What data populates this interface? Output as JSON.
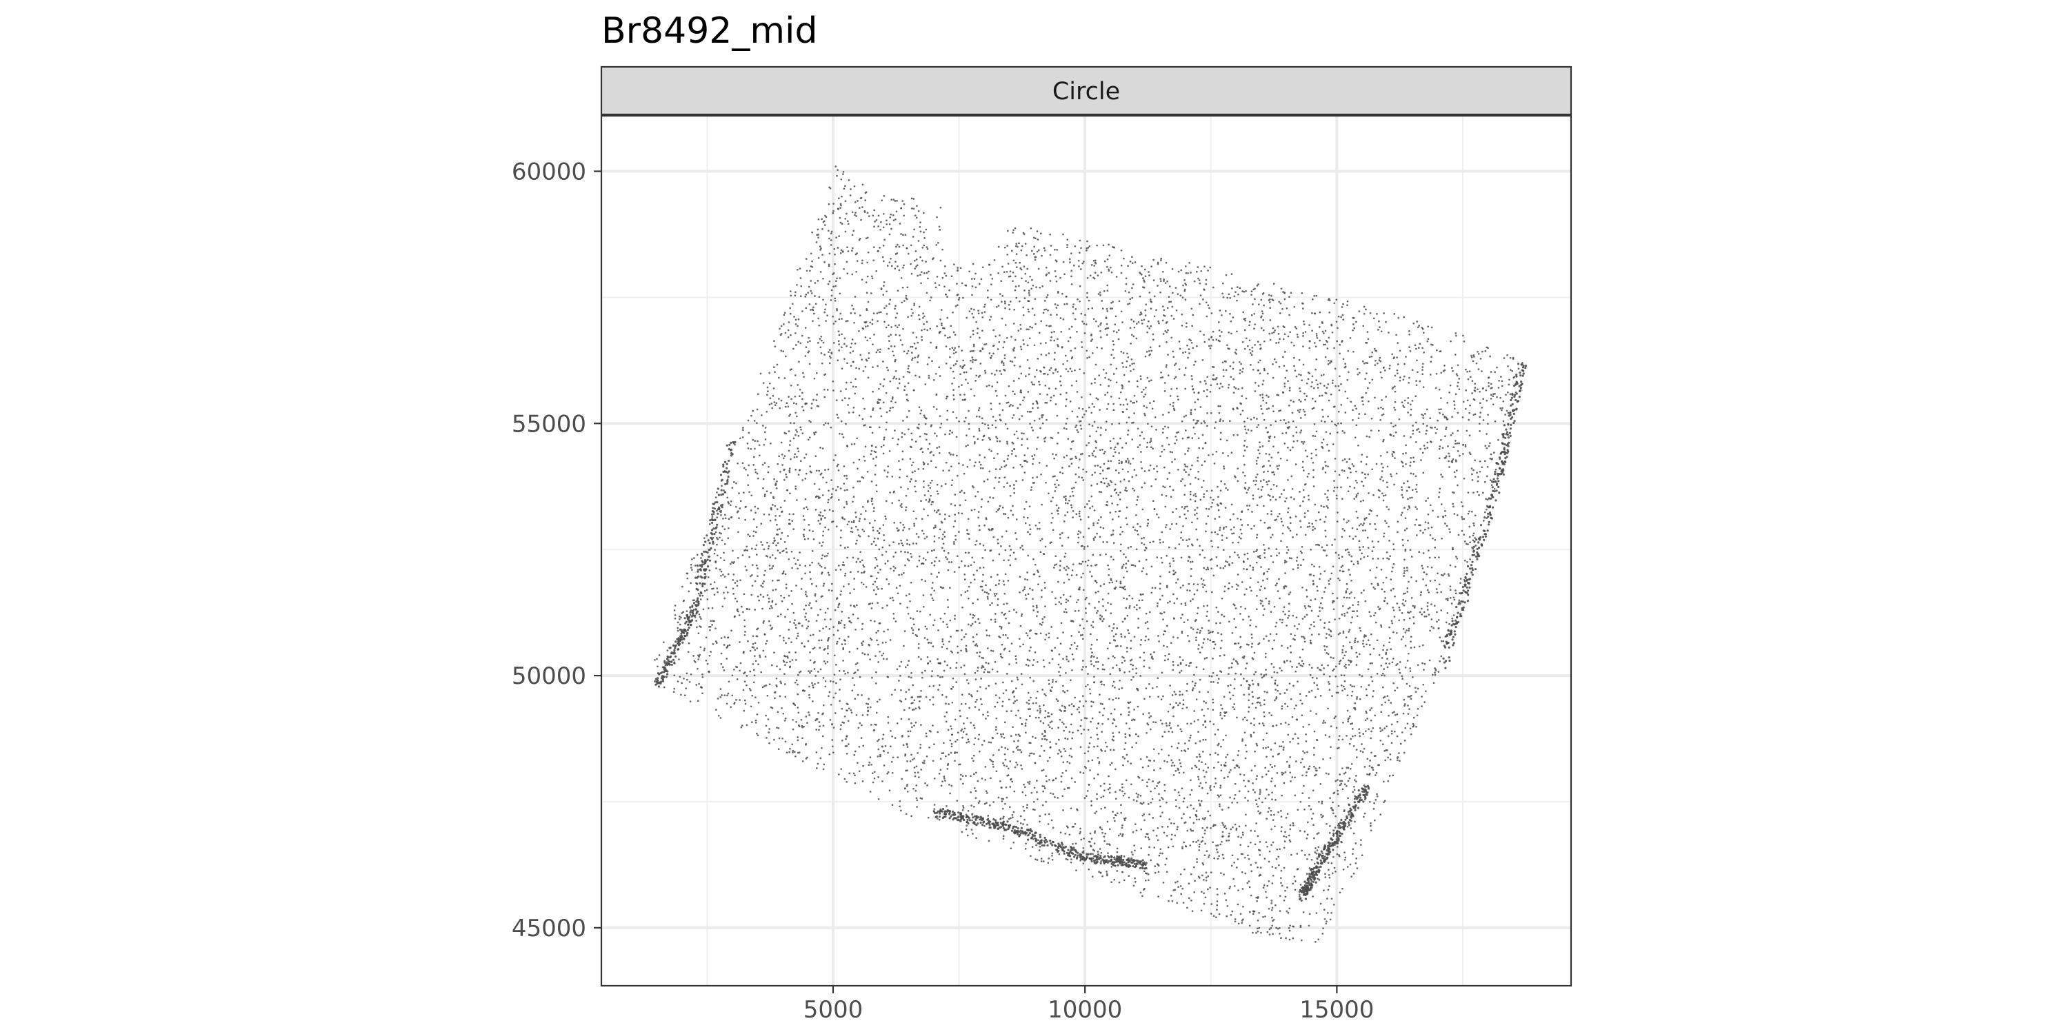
{
  "chart_data": {
    "type": "scatter",
    "title": "Br8492_mid",
    "facet_label": "Circle",
    "xlabel": "",
    "ylabel": "",
    "xlim": [
      400,
      19650
    ],
    "ylim": [
      43850,
      61100
    ],
    "x_ticks": [
      5000,
      10000,
      15000
    ],
    "x_tick_labels": [
      "5000",
      "10000",
      "15000"
    ],
    "y_ticks": [
      45000,
      50000,
      55000,
      60000
    ],
    "y_tick_labels": [
      "45000",
      "50000",
      "55000",
      "60000"
    ],
    "grid": true,
    "point_color": "#4d4d4d",
    "point_count_drawn": 9000,
    "region_outline": [
      [
        5050,
        60100
      ],
      [
        5850,
        59700
      ],
      [
        7200,
        59300
      ],
      [
        12100,
        58200
      ],
      [
        16900,
        57000
      ],
      [
        18700,
        56250
      ],
      [
        18100,
        53500
      ],
      [
        17000,
        50000
      ],
      [
        15800,
        47000
      ],
      [
        14700,
        44700
      ],
      [
        13500,
        44800
      ],
      [
        6300,
        47300
      ],
      [
        1300,
        49900
      ],
      [
        3200,
        55000
      ],
      [
        4200,
        57800
      ]
    ],
    "dense_streaks": [
      {
        "name": "lower-left-streak",
        "points": [
          [
            7000,
            47300
          ],
          [
            8500,
            47000
          ],
          [
            10000,
            46400
          ],
          [
            11200,
            46250
          ]
        ]
      },
      {
        "name": "lower-right-streak",
        "points": [
          [
            14300,
            45600
          ],
          [
            14800,
            46500
          ],
          [
            15600,
            47800
          ]
        ]
      },
      {
        "name": "right-edge-streak",
        "points": [
          [
            18700,
            56200
          ],
          [
            18100,
            53500
          ],
          [
            17100,
            50200
          ]
        ]
      },
      {
        "name": "left-edge-streak",
        "points": [
          [
            1500,
            49800
          ],
          [
            2200,
            51200
          ],
          [
            3000,
            54600
          ]
        ]
      }
    ],
    "empty_regions": [
      {
        "name": "upper-gap",
        "center": [
          7700,
          58800
        ],
        "radius": 900
      }
    ]
  }
}
